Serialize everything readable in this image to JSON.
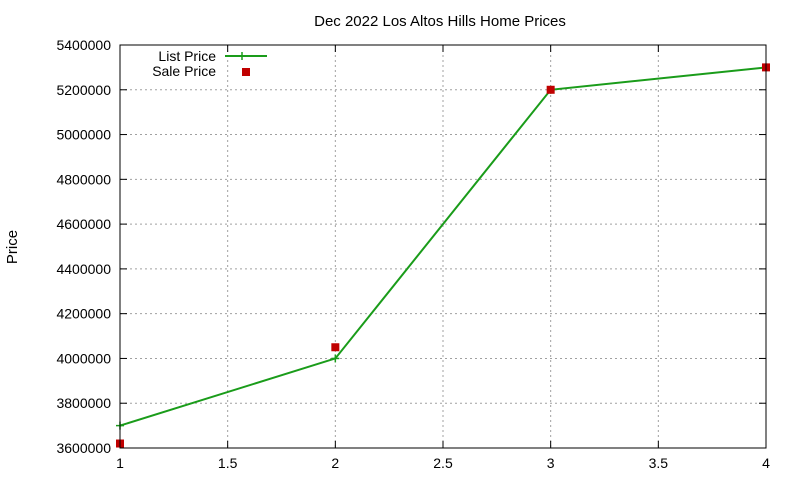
{
  "chart_data": {
    "type": "line",
    "title": "Dec 2022 Los Altos Hills Home Prices",
    "xlabel": "",
    "ylabel": "Price",
    "xlim": [
      1,
      4
    ],
    "ylim": [
      3600000,
      5400000
    ],
    "xticks": [
      1,
      1.5,
      2,
      2.5,
      3,
      3.5,
      4
    ],
    "xtick_labels": [
      "1",
      "1.5",
      "2",
      "2.5",
      "3",
      "3.5",
      "4"
    ],
    "yticks": [
      3600000,
      3800000,
      4000000,
      4200000,
      4400000,
      4600000,
      4800000,
      5000000,
      5200000,
      5400000
    ],
    "ytick_labels": [
      "3600000",
      "3800000",
      "4000000",
      "4200000",
      "4400000",
      "4600000",
      "4800000",
      "5000000",
      "5200000",
      "5400000"
    ],
    "grid": true,
    "legend_position": "top-left",
    "series": [
      {
        "name": "List Price",
        "style": "line-with-plus-markers",
        "color": "#1a9c1a",
        "x": [
          1,
          2,
          3,
          4
        ],
        "y": [
          3700000,
          4000000,
          5200000,
          5300000
        ]
      },
      {
        "name": "Sale Price",
        "style": "square-markers",
        "color": "#c00000",
        "x": [
          1,
          2,
          3,
          4
        ],
        "y": [
          3620000,
          4050000,
          5200000,
          5300000
        ]
      }
    ]
  }
}
